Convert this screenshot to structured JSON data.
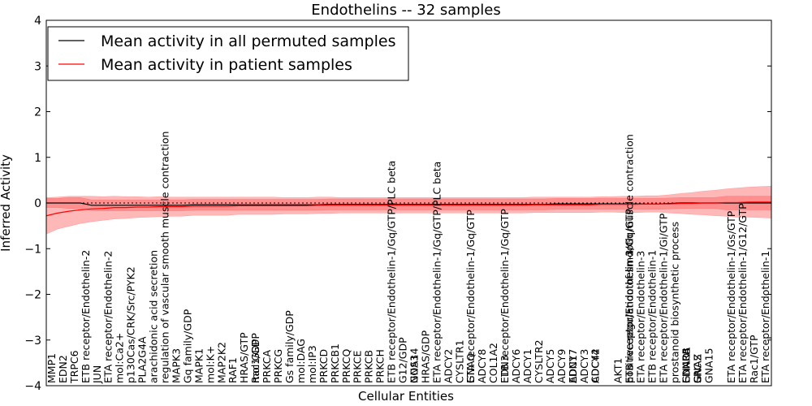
{
  "chart_data": {
    "type": "line",
    "title": "Endothelins -- 32 samples",
    "xlabel": "Cellular Entities",
    "ylabel": "Inferred Activity",
    "ylim": [
      -4,
      4
    ],
    "yticks": [
      "−4",
      "−3",
      "−2",
      "−1",
      "0",
      "1",
      "2",
      "3",
      "4"
    ],
    "legend": {
      "placement": "top-left",
      "entries": [
        {
          "label": "Mean activity in all permuted samples",
          "color": "#000000"
        },
        {
          "label": "Mean activity in patient samples",
          "color": "#ff0000"
        }
      ]
    },
    "categories": [
      "MMP1",
      "EDN2",
      "TRPC6",
      "ETB receptor/Endothelin-2",
      "JUN",
      "ETA receptor/Endothelin-2",
      "mol:Ca2+",
      "p130Cas/CRK/Src/PYK2",
      "PLA2G4A",
      "arachidonic acid secretion",
      "regulation of vascular smooth muscle contraction",
      "MAPK3",
      "Gq family/GDP",
      "MAPK1",
      "mol:K+",
      "MAP2K2",
      "RAF1",
      "HRAS/GTP",
      "mol:GDP",
      "Rac1/GDP",
      "PRKCA",
      "PRKCG",
      "Gs family/GDP",
      "mol:DAG",
      "mol:IP3",
      "PRKCD",
      "PRKCB1",
      "PRKCQ",
      "PRKCE",
      "PRKCB",
      "PRKCH",
      "ETB receptor/Endothelin-1/Gq/GTP/PLC beta",
      "G12/GDP",
      "GNA14",
      "NOS3",
      "HRAS/GDP",
      "ETA receptor/Endothelin-1/Gq/GTP/PLC beta",
      "ADCY2",
      "CYSLTR1",
      "ETA receptor/Endothelin-1/Gq/GTP",
      "GNAQ",
      "ADCY8",
      "COL1A2",
      "ETB receptor/Endothelin-1/Gq/GTP",
      "EDN3",
      "ADCY6",
      "ADCY1",
      "CYSLTR2",
      "ADCY5",
      "ADCY9",
      "ADCY7",
      "EDN1",
      "ADCY3",
      "ADCY4",
      "CDC42",
      "AKT1",
      "ETB receptor/Endothelin-3",
      "ETB receptor/Endothelin-2/Gq/GTP",
      "ETB receptor/Endothelin-1/Gq/GTP",
      "positive regulation of smooth muscle contraction",
      "ETA receptor/Endothelin-3",
      "ETB receptor/Endothelin-1",
      "ETA receptor/Endothelin-1/Gi/GTP",
      "prostanoid biosynthetic process",
      "EDNRA",
      "GNAO1",
      "EDNRB",
      "GNAS",
      "SRC",
      "GNAZ",
      "GNA15",
      "ETA receptor/Endothelin-1/Gs/GTP",
      "ETA receptor/Endothelin-1/G12/GTP",
      "Rac1/GTP",
      "ETA receptor/Endothelin-1"
    ],
    "category_positions": [
      0.5,
      1.5,
      2.5,
      3.5,
      4.5,
      5.5,
      6.5,
      7.5,
      8.5,
      9.5,
      10.5,
      11.5,
      12.5,
      13.5,
      14.5,
      15.5,
      16.5,
      17.5,
      18.5,
      18.5,
      19.5,
      20.5,
      21.5,
      22.5,
      23.5,
      24.5,
      25.5,
      26.5,
      27.5,
      28.5,
      29.5,
      30.5,
      31.5,
      32.5,
      32.5,
      33.5,
      34.5,
      35.5,
      36.5,
      37.5,
      37.5,
      38.5,
      39.5,
      40.5,
      40.5,
      41.5,
      42.5,
      43.5,
      44.5,
      45.5,
      46.5,
      46.5,
      47.5,
      48.5,
      48.5,
      50.5,
      51.5,
      51.5,
      51.5,
      51.5,
      52.5,
      53.5,
      54.5,
      55.5,
      56.5,
      56.5,
      56.5,
      57.5,
      57.5,
      57.5,
      58.5,
      60.5,
      61.5,
      62.5,
      63.5
    ],
    "x": [
      0,
      1,
      2,
      3,
      4,
      5,
      6,
      7,
      8,
      9,
      10,
      11,
      12,
      13,
      14,
      15,
      16,
      17,
      18,
      19,
      20,
      21,
      22,
      23,
      24,
      25,
      26,
      27,
      28,
      29,
      30,
      31,
      32,
      33,
      34,
      35,
      36,
      37,
      38,
      39,
      40,
      41,
      42,
      43,
      44,
      45,
      46,
      47,
      48,
      49,
      50,
      51,
      52,
      53,
      54,
      55,
      56,
      57,
      58,
      59,
      60,
      61,
      62,
      63,
      64
    ],
    "xlim": [
      0,
      64
    ],
    "series": [
      {
        "name": "Mean activity in all permuted samples",
        "color": "#000000",
        "values": [
          0.0,
          0.0,
          0.0,
          0.0,
          -0.05,
          -0.05,
          -0.05,
          -0.05,
          -0.05,
          -0.05,
          -0.05,
          -0.05,
          -0.05,
          -0.04,
          -0.04,
          -0.04,
          -0.04,
          -0.04,
          -0.04,
          -0.04,
          -0.04,
          -0.04,
          -0.04,
          -0.04,
          -0.04,
          -0.03,
          -0.03,
          -0.03,
          -0.03,
          -0.03,
          -0.03,
          -0.03,
          -0.03,
          -0.03,
          -0.03,
          -0.03,
          -0.03,
          -0.03,
          -0.03,
          -0.03,
          -0.03,
          -0.03,
          -0.03,
          -0.03,
          -0.03,
          -0.02,
          -0.02,
          -0.02,
          -0.02,
          -0.02,
          -0.02,
          -0.02,
          -0.02,
          -0.02,
          -0.02,
          -0.01,
          0.0,
          0.0,
          0.0,
          0.0,
          0.0,
          0.0,
          0.0,
          0.0,
          0.0
        ],
        "band": [
          0.1,
          0.1,
          0.12,
          0.12,
          0.12,
          0.12,
          0.12,
          0.12,
          0.12,
          0.12,
          0.12,
          0.12,
          0.12,
          0.12,
          0.12,
          0.12,
          0.12,
          0.12,
          0.12,
          0.12,
          0.12,
          0.12,
          0.12,
          0.12,
          0.12,
          0.12,
          0.12,
          0.12,
          0.12,
          0.12,
          0.12,
          0.12,
          0.12,
          0.12,
          0.12,
          0.12,
          0.12,
          0.12,
          0.12,
          0.12,
          0.12,
          0.12,
          0.12,
          0.12,
          0.12,
          0.12,
          0.12,
          0.12,
          0.12,
          0.12,
          0.12,
          0.12,
          0.12,
          0.12,
          0.12,
          0.12,
          0.12,
          0.12,
          0.12,
          0.12,
          0.15,
          0.15,
          0.15,
          0.15,
          0.15
        ]
      },
      {
        "name": "Mean activity in patient samples",
        "color": "#ff0000",
        "values": [
          -0.28,
          -0.22,
          -0.18,
          -0.15,
          -0.13,
          -0.12,
          -0.1,
          -0.1,
          -0.09,
          -0.09,
          -0.08,
          -0.08,
          -0.08,
          -0.07,
          -0.07,
          -0.07,
          -0.07,
          -0.06,
          -0.06,
          -0.06,
          -0.06,
          -0.06,
          -0.06,
          -0.06,
          -0.05,
          -0.05,
          -0.05,
          -0.05,
          -0.05,
          -0.05,
          -0.05,
          -0.05,
          -0.05,
          -0.05,
          -0.05,
          -0.05,
          -0.05,
          -0.05,
          -0.05,
          -0.05,
          -0.05,
          -0.05,
          -0.05,
          -0.04,
          -0.04,
          -0.04,
          -0.04,
          -0.04,
          -0.04,
          -0.03,
          -0.03,
          -0.03,
          -0.03,
          -0.02,
          -0.02,
          -0.02,
          -0.01,
          -0.01,
          0.0,
          0.0,
          0.01,
          0.01,
          0.02,
          0.02,
          0.02
        ],
        "band": [
          0.4,
          0.35,
          0.33,
          0.3,
          0.28,
          0.26,
          0.25,
          0.24,
          0.23,
          0.22,
          0.22,
          0.21,
          0.21,
          0.2,
          0.2,
          0.2,
          0.2,
          0.19,
          0.19,
          0.19,
          0.19,
          0.18,
          0.18,
          0.18,
          0.18,
          0.18,
          0.17,
          0.17,
          0.17,
          0.17,
          0.17,
          0.17,
          0.17,
          0.17,
          0.17,
          0.17,
          0.17,
          0.17,
          0.17,
          0.17,
          0.17,
          0.17,
          0.17,
          0.17,
          0.17,
          0.17,
          0.17,
          0.17,
          0.17,
          0.17,
          0.17,
          0.18,
          0.18,
          0.18,
          0.18,
          0.2,
          0.22,
          0.24,
          0.26,
          0.28,
          0.3,
          0.32,
          0.33,
          0.34,
          0.35
        ]
      }
    ],
    "permuted_band_center": [
      0.0,
      0.0,
      0.0,
      0.0,
      -0.05,
      -0.05,
      -0.05,
      -0.05,
      -0.05,
      -0.05,
      -0.05,
      -0.05,
      -0.05,
      -0.04,
      -0.04,
      -0.04,
      -0.04,
      -0.04,
      -0.04,
      -0.04,
      -0.04,
      -0.04,
      -0.04,
      -0.04,
      -0.04,
      -0.03,
      -0.03,
      -0.03,
      -0.03,
      -0.03,
      -0.03,
      -0.03,
      -0.03,
      -0.03,
      -0.03,
      -0.03,
      -0.03,
      -0.03,
      -0.03,
      -0.03,
      -0.03,
      -0.03,
      -0.03,
      -0.03,
      -0.03,
      -0.02,
      -0.02,
      -0.02,
      -0.02,
      -0.02,
      -0.02,
      -0.02,
      -0.02,
      -0.02,
      -0.02,
      -0.01,
      0.0,
      0.0,
      0.0,
      0.0,
      0.0,
      0.0,
      0.0,
      0.0,
      0.0
    ],
    "zero_line": 0
  }
}
